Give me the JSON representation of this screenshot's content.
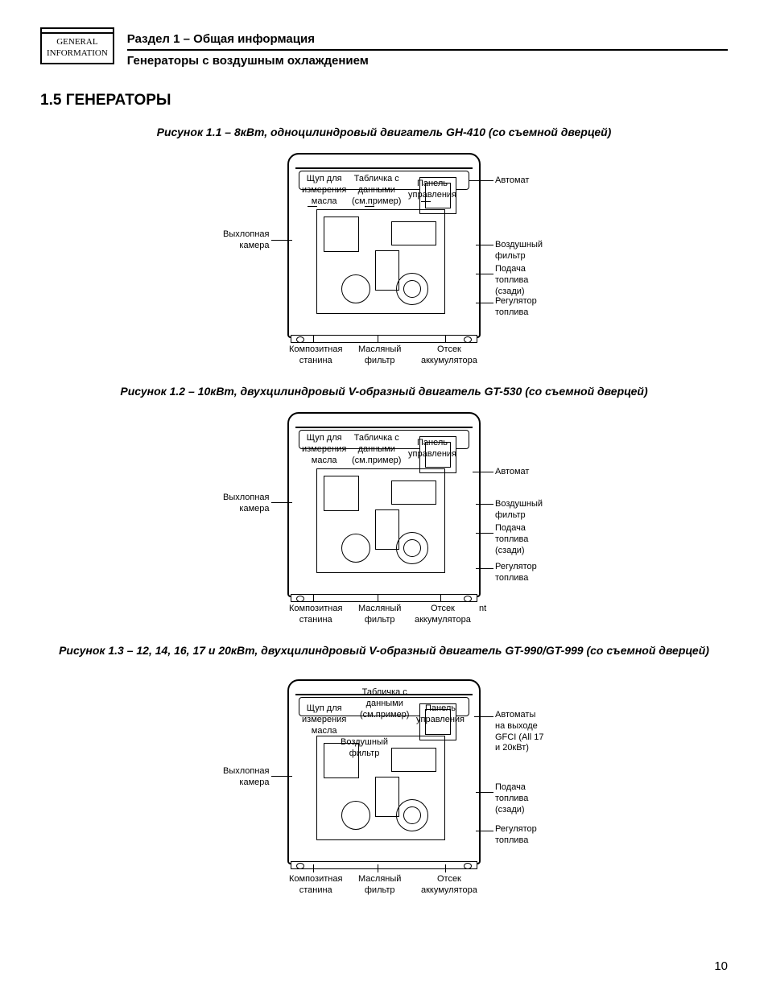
{
  "page_number": "10",
  "tab_icon": {
    "line1": "GENERAL",
    "line2": "INFORMATION"
  },
  "header": {
    "section": "Раздел 1 – Общая информация",
    "subtitle": "Генераторы с воздушным охлаждением"
  },
  "chapter_title": "1.5 ГЕНЕРАТОРЫ",
  "figures": [
    {
      "caption": "Рисунок 1.1 – 8кВт, одноцилиндровый двигатель GH-410 (со съемной дверцей)",
      "labels": {
        "top": [
          {
            "text": "Щуп для\nизмерения\nмасла"
          },
          {
            "text": "Табличка с\nданными\n(см.пример)"
          },
          {
            "text": "Панель\nуправления"
          }
        ],
        "top_right": "Автомат",
        "left": [
          {
            "text": "Выхлопная\nкамера"
          }
        ],
        "right": [
          {
            "text": "Воздушный\nфильтр"
          },
          {
            "text": "Подача\nтоплива\n(сзади)"
          },
          {
            "text": "Регулятор\nтоплива"
          }
        ],
        "bottom": [
          {
            "text": "Композитная\nстанина"
          },
          {
            "text": "Масляный\nфильтр"
          },
          {
            "text": "Отсек\nаккумулятора"
          }
        ]
      }
    },
    {
      "caption": "Рисунок 1.2 – 10кВт, двухцилиндровый V-образный двигатель GT-530 (со съемной дверцей)",
      "labels": {
        "top": [
          {
            "text": "Щуп для\nизмерения\nмасла"
          },
          {
            "text": "Табличка с\nданными\n(см.пример)"
          },
          {
            "text": "Панель\nуправления"
          }
        ],
        "top_right": "Автомат",
        "left": [
          {
            "text": "Выхлопная\nкамера"
          }
        ],
        "right": [
          {
            "text": "Воздушный\nфильтр"
          },
          {
            "text": "Подача\nтоплива\n(сзади)"
          },
          {
            "text": "Регулятор\nтоплива"
          }
        ],
        "bottom": [
          {
            "text": "Композитная\nстанина"
          },
          {
            "text": "Масляный\nфильтр"
          },
          {
            "text": "Отсек\nаккумулятора"
          }
        ],
        "bottom_extra": "nt"
      }
    },
    {
      "caption": "Рисунок 1.3 – 12, 14, 16, 17 и 20кВт, двухцилиндровый V-образный двигатель GT-990/GT-999 (со съемной дверцей)",
      "labels": {
        "top": [
          {
            "text": "Щуп для\nизмерения\nмасла"
          },
          {
            "text": "Табличка с\nданными\n(см.пример)"
          },
          {
            "text": "Панель\nуправления"
          }
        ],
        "top_mid_extra": "Воздушный\nфильтр",
        "top_right": "Автоматы\nна выходе\nGFCI (All 17\nи 20кВт)",
        "left": [
          {
            "text": "Выхлопная\nкамера"
          }
        ],
        "right": [
          {
            "text": "Подача\nтоплива\n(сзади)"
          },
          {
            "text": "Регулятор\nтоплива"
          }
        ],
        "bottom": [
          {
            "text": "Композитная\nстанина"
          },
          {
            "text": "Масляный\nфильтр"
          },
          {
            "text": "Отсек\nаккумулятора"
          }
        ]
      }
    }
  ],
  "style": {
    "body_font_family": "Arial, Helvetica, sans-serif",
    "heading_fontsize_pt": 14,
    "caption_fontsize_pt": 11,
    "label_fontsize_pt": 8,
    "line_color": "#000000",
    "background": "#ffffff"
  }
}
